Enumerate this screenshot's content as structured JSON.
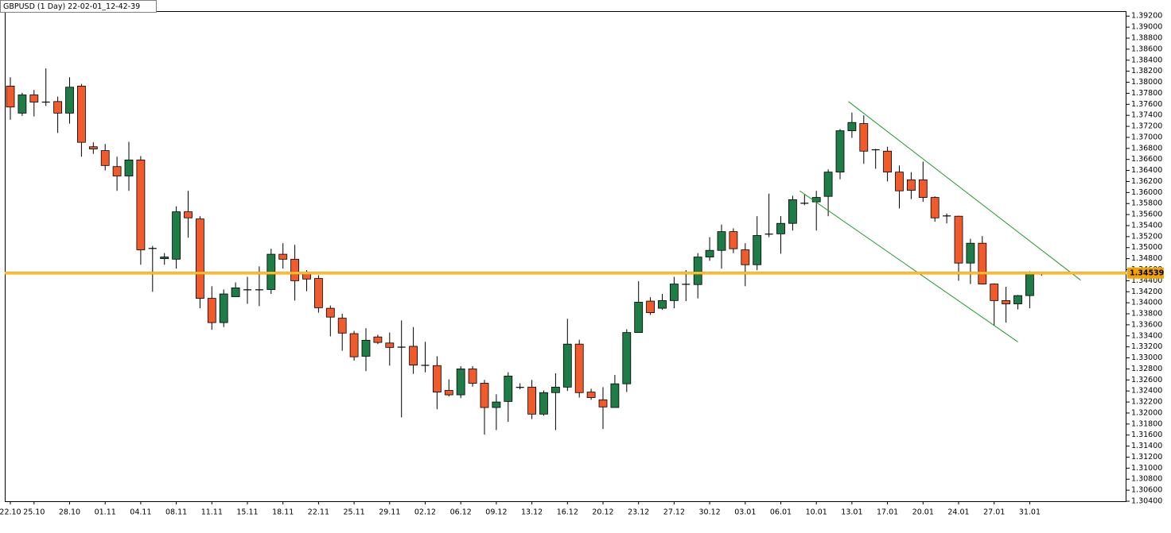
{
  "chart_data": {
    "type": "candlestick",
    "title": "GBPUSD (1 Day) 22-02-01_12-42-39",
    "categories": [
      "22.10",
      null,
      "25.10",
      null,
      null,
      "28.10",
      null,
      null,
      "01.11",
      null,
      null,
      "04.11",
      null,
      null,
      "08.11",
      null,
      null,
      "11.11",
      null,
      null,
      "15.11",
      null,
      null,
      "18.11",
      null,
      null,
      "22.11",
      null,
      null,
      "25.11",
      null,
      null,
      "29.11",
      null,
      null,
      "02.12",
      null,
      null,
      "06.12",
      null,
      null,
      "09.12",
      null,
      null,
      "13.12",
      null,
      null,
      "16.12",
      null,
      null,
      "20.12",
      null,
      null,
      "23.12",
      null,
      null,
      "27.12",
      null,
      null,
      "30.12",
      null,
      null,
      "03.01",
      null,
      null,
      "06.01",
      null,
      null,
      "10.01",
      null,
      null,
      "13.01",
      null,
      null,
      "17.01",
      null,
      null,
      "20.01",
      null,
      null,
      "24.01",
      null,
      null,
      "27.01",
      null,
      null,
      "31.01",
      null
    ],
    "open": [
      1.3793,
      1.3744,
      1.3777,
      1.3765,
      1.3765,
      1.3744,
      1.3793,
      1.3683,
      1.3676,
      1.3647,
      1.363,
      1.3659,
      1.3499,
      1.348,
      1.3479,
      1.3565,
      1.3552,
      1.3408,
      1.3364,
      1.3411,
      1.3424,
      1.3423,
      1.3424,
      1.3488,
      1.3479,
      1.3453,
      1.3444,
      1.339,
      1.3372,
      1.3344,
      1.3303,
      1.3338,
      1.3327,
      1.332,
      1.3321,
      1.3287,
      1.3286,
      1.3241,
      1.3233,
      1.328,
      1.3254,
      1.321,
      1.3221,
      1.3246,
      1.3247,
      1.3198,
      1.3237,
      1.3247,
      1.3325,
      1.3238,
      1.3224,
      1.321,
      1.3253,
      1.3346,
      1.3403,
      1.339,
      1.3404,
      1.3433,
      1.3433,
      1.3483,
      1.3495,
      1.3529,
      1.3496,
      1.3469,
      1.3524,
      1.3525,
      1.3544,
      1.358,
      1.3583,
      1.3593,
      1.3637,
      1.3712,
      1.3725,
      1.3678,
      1.3675,
      1.3637,
      1.3623,
      1.3623,
      1.3591,
      1.3558,
      1.3557,
      1.3472,
      1.3508,
      1.3434,
      1.3404,
      1.3398,
      1.3413,
      1.3452
    ],
    "high": [
      1.3809,
      1.3781,
      1.3786,
      1.3825,
      1.3774,
      1.3809,
      1.3797,
      1.3691,
      1.3688,
      1.3665,
      1.3692,
      1.3666,
      1.3503,
      1.349,
      1.3575,
      1.3603,
      1.3557,
      1.343,
      1.3424,
      1.3437,
      1.3447,
      1.3466,
      1.3498,
      1.3508,
      1.3505,
      1.3459,
      1.345,
      1.3395,
      1.338,
      1.3349,
      1.3354,
      1.3342,
      1.3346,
      1.3368,
      1.3356,
      1.3329,
      1.3303,
      1.3261,
      1.3285,
      1.3285,
      1.326,
      1.3234,
      1.3274,
      1.3254,
      1.326,
      1.3241,
      1.3272,
      1.3371,
      1.3333,
      1.3244,
      1.3247,
      1.3269,
      1.3352,
      1.3439,
      1.341,
      1.3416,
      1.3447,
      1.3459,
      1.349,
      1.3519,
      1.3542,
      1.3535,
      1.3508,
      1.3557,
      1.3598,
      1.3557,
      1.3594,
      1.3597,
      1.3603,
      1.3642,
      1.3715,
      1.3745,
      1.374,
      1.3679,
      1.3683,
      1.3649,
      1.3637,
      1.3656,
      1.3593,
      1.3562,
      1.3558,
      1.3516,
      1.3521,
      1.3435,
      1.3429,
      1.3414,
      1.3457,
      1.3456
    ],
    "low": [
      1.3732,
      1.3739,
      1.3738,
      1.3757,
      1.3708,
      1.3725,
      1.3665,
      1.367,
      1.364,
      1.3603,
      1.3603,
      1.3469,
      1.342,
      1.3469,
      1.3462,
      1.3518,
      1.339,
      1.3351,
      1.3356,
      1.3411,
      1.3398,
      1.3394,
      1.3416,
      1.3462,
      1.3404,
      1.3421,
      1.3382,
      1.3339,
      1.3313,
      1.3295,
      1.3276,
      1.3325,
      1.3286,
      1.3192,
      1.3271,
      1.3274,
      1.3207,
      1.323,
      1.3227,
      1.3248,
      1.3161,
      1.3169,
      1.3184,
      1.3243,
      1.3189,
      1.3195,
      1.3169,
      1.324,
      1.3228,
      1.3224,
      1.3171,
      1.321,
      1.3238,
      1.3346,
      1.3378,
      1.3387,
      1.339,
      1.3403,
      1.3408,
      1.3476,
      1.3462,
      1.349,
      1.343,
      1.3459,
      1.3519,
      1.3489,
      1.3531,
      1.3577,
      1.3531,
      1.3557,
      1.3624,
      1.3699,
      1.3652,
      1.3643,
      1.362,
      1.3571,
      1.3588,
      1.3583,
      1.3547,
      1.3544,
      1.344,
      1.3434,
      1.3433,
      1.3359,
      1.3364,
      1.3388,
      1.339,
      1.3449
    ],
    "close": [
      1.3755,
      1.3777,
      1.3764,
      1.3763,
      1.3744,
      1.3791,
      1.3691,
      1.3679,
      1.3649,
      1.363,
      1.3659,
      1.3496,
      1.3498,
      1.3483,
      1.3565,
      1.3554,
      1.3408,
      1.3364,
      1.3416,
      1.3427,
      1.3423,
      1.3424,
      1.3488,
      1.3479,
      1.344,
      1.3443,
      1.3391,
      1.3374,
      1.3345,
      1.3302,
      1.3332,
      1.3328,
      1.3319,
      1.3319,
      1.3287,
      1.3286,
      1.3238,
      1.3233,
      1.328,
      1.3254,
      1.321,
      1.322,
      1.3267,
      1.3247,
      1.3198,
      1.3237,
      1.3247,
      1.3325,
      1.3237,
      1.3228,
      1.3211,
      1.3253,
      1.3346,
      1.3401,
      1.3382,
      1.3404,
      1.3434,
      1.3434,
      1.3483,
      1.3495,
      1.3529,
      1.3498,
      1.3469,
      1.3522,
      1.3525,
      1.3544,
      1.3587,
      1.3581,
      1.3591,
      1.3637,
      1.3712,
      1.3727,
      1.3675,
      1.3677,
      1.3637,
      1.3603,
      1.3604,
      1.3591,
      1.3554,
      1.3557,
      1.3472,
      1.3508,
      1.3434,
      1.3404,
      1.3398,
      1.3413,
      1.3452,
      1.3454
    ],
    "up_color": "#1e7d46",
    "down_color": "#f15a2b",
    "hline": {
      "value": 1.34539,
      "color": "#f5a300"
    },
    "trendlines": [
      {
        "x": [
          70.7,
          90.3
        ],
        "y": [
          1.3765,
          1.3441
        ],
        "color": "#1f9a2c"
      },
      {
        "x": [
          66.6,
          85.0
        ],
        "y": [
          1.3603,
          1.3329
        ],
        "color": "#1f9a2c"
      }
    ],
    "ylim": [
      1.304,
      1.3929
    ],
    "yticks": [
      {
        "value": 1.304,
        "label": "1.30400"
      },
      {
        "value": 1.306,
        "label": "1.30600"
      },
      {
        "value": 1.308,
        "label": "1.30800"
      },
      {
        "value": 1.31,
        "label": "1.31000"
      },
      {
        "value": 1.312,
        "label": "1.31200"
      },
      {
        "value": 1.314,
        "label": "1.31400"
      },
      {
        "value": 1.316,
        "label": "1.31600"
      },
      {
        "value": 1.318,
        "label": "1.31800"
      },
      {
        "value": 1.32,
        "label": "1.32000"
      },
      {
        "value": 1.322,
        "label": "1.32200"
      },
      {
        "value": 1.324,
        "label": "1.32400"
      },
      {
        "value": 1.326,
        "label": "1.32600"
      },
      {
        "value": 1.328,
        "label": "1.32800"
      },
      {
        "value": 1.33,
        "label": "1.33000"
      },
      {
        "value": 1.332,
        "label": "1.33200"
      },
      {
        "value": 1.334,
        "label": "1.33400"
      },
      {
        "value": 1.336,
        "label": "1.33600"
      },
      {
        "value": 1.338,
        "label": "1.33800"
      },
      {
        "value": 1.34,
        "label": "1.34000"
      },
      {
        "value": 1.342,
        "label": "1.34200"
      },
      {
        "value": 1.344,
        "label": "1.34400"
      },
      {
        "value": 1.346,
        "label": "1.34600"
      },
      {
        "value": 1.348,
        "label": "1.34800"
      },
      {
        "value": 1.35,
        "label": "1.35000"
      },
      {
        "value": 1.352,
        "label": "1.35200"
      },
      {
        "value": 1.354,
        "label": "1.35400"
      },
      {
        "value": 1.356,
        "label": "1.35600"
      },
      {
        "value": 1.358,
        "label": "1.35800"
      },
      {
        "value": 1.36,
        "label": "1.36000"
      },
      {
        "value": 1.362,
        "label": "1.36200"
      },
      {
        "value": 1.364,
        "label": "1.36400"
      },
      {
        "value": 1.366,
        "label": "1.36600"
      },
      {
        "value": 1.368,
        "label": "1.36800"
      },
      {
        "value": 1.37,
        "label": "1.37000"
      },
      {
        "value": 1.372,
        "label": "1.37200"
      },
      {
        "value": 1.374,
        "label": "1.37400"
      },
      {
        "value": 1.376,
        "label": "1.37600"
      },
      {
        "value": 1.378,
        "label": "1.37800"
      },
      {
        "value": 1.38,
        "label": "1.38000"
      },
      {
        "value": 1.382,
        "label": "1.38200"
      },
      {
        "value": 1.384,
        "label": "1.38400"
      },
      {
        "value": 1.386,
        "label": "1.38600"
      },
      {
        "value": 1.388,
        "label": "1.38800"
      },
      {
        "value": 1.39,
        "label": "1.39000"
      },
      {
        "value": 1.392,
        "label": "1.39200"
      }
    ],
    "grid": false
  }
}
